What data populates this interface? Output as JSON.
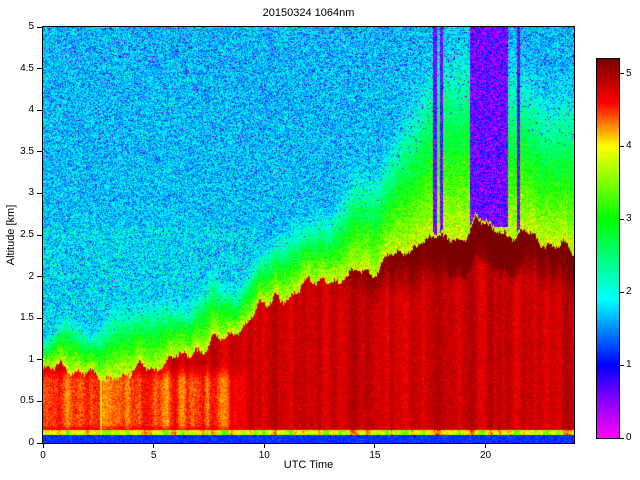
{
  "chart_data": {
    "type": "heatmap",
    "title": "20150324 1064nm",
    "xlabel": "UTC Time",
    "ylabel": "Altitude [km]",
    "x_range": [
      0,
      24
    ],
    "y_range": [
      0,
      5
    ],
    "x_ticks": [
      0,
      5,
      10,
      15,
      20
    ],
    "y_ticks": [
      0,
      0.5,
      1,
      1.5,
      2,
      2.5,
      3,
      3.5,
      4,
      4.5,
      5
    ],
    "grid": false,
    "colorbar": {
      "range": [
        0,
        5.2
      ],
      "ticks": [
        0,
        1,
        2,
        3,
        4,
        5
      ],
      "position": "right"
    },
    "colormap": {
      "name": "jet-with-magenta-floor",
      "stops": [
        [
          0,
          255,
          0,
          255
        ],
        [
          0.5,
          140,
          0,
          255
        ],
        [
          1,
          0,
          0,
          255
        ],
        [
          1.9,
          0,
          255,
          255
        ],
        [
          3,
          0,
          255,
          0
        ],
        [
          4,
          255,
          255,
          0
        ],
        [
          4.6,
          255,
          0,
          0
        ],
        [
          5.2,
          122,
          0,
          0
        ]
      ]
    },
    "boundary_layer_top": {
      "x": [
        0,
        1,
        2,
        3,
        4,
        5,
        6,
        7,
        8,
        9,
        10,
        11,
        12,
        13,
        14,
        15,
        16,
        17,
        18,
        19,
        20,
        21,
        22,
        23,
        24
      ],
      "y": [
        0.92,
        0.9,
        0.82,
        0.78,
        0.85,
        0.95,
        1.02,
        1.1,
        1.25,
        1.45,
        1.65,
        1.75,
        1.85,
        1.95,
        2.05,
        2.15,
        2.25,
        2.38,
        2.45,
        2.55,
        2.63,
        2.55,
        2.45,
        2.35,
        2.3
      ]
    },
    "green_top": {
      "x": [
        0,
        2,
        4,
        6,
        8,
        10,
        12,
        14,
        15,
        16,
        17,
        18,
        19,
        20,
        21,
        22,
        23,
        24
      ],
      "y": [
        1.4,
        1.5,
        1.6,
        1.75,
        1.95,
        2.3,
        2.7,
        3.1,
        3.4,
        3.8,
        4.3,
        5,
        5,
        5,
        4.6,
        4.4,
        4.3,
        4.2
      ]
    },
    "attenuated_columns": [
      {
        "x_start": 17.63,
        "x_end": 17.8,
        "z_base": 2.45
      },
      {
        "x_start": 17.95,
        "x_end": 18.08,
        "z_base": 2.45
      },
      {
        "x_start": 19.3,
        "x_end": 21.02,
        "z_base": 2.6
      },
      {
        "x_start": 21.44,
        "x_end": 21.58,
        "z_base": 2.5
      }
    ],
    "surface": {
      "dark_band_top_km": 0.1,
      "bright_line_top_km": 0.16
    },
    "region_values": {
      "aerosol_layer": 4.8,
      "morning_orange": 4.3,
      "dark_cap_max": 5.2,
      "transition_band": [
        1.8,
        3.9
      ],
      "clear_air_noise": [
        1.25,
        2.1
      ],
      "purple_specks": [
        0.15,
        1.0
      ],
      "attenuated_noise": [
        0,
        1.35
      ]
    }
  }
}
